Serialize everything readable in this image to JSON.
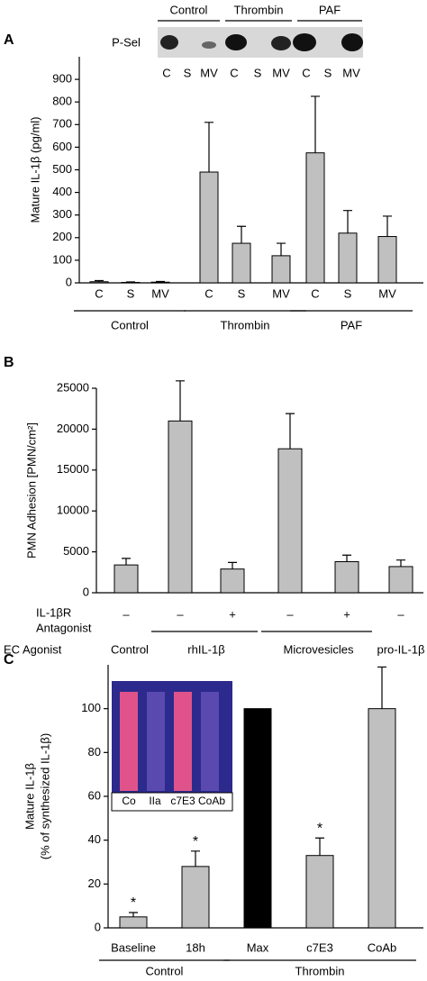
{
  "chart_data": [
    {
      "type": "bar",
      "panel": "A",
      "ylabel": "Mature IL-1β (pg/ml)",
      "blot": {
        "label": "P-Sel",
        "groups": [
          "Control",
          "Thrombin",
          "PAF"
        ],
        "lanes": [
          "C",
          "S",
          "MV",
          "C",
          "S",
          "MV",
          "C",
          "S",
          "MV"
        ]
      },
      "groups": [
        {
          "name": "Control",
          "categories": [
            "C",
            "S",
            "MV"
          ]
        },
        {
          "name": "Thrombin",
          "categories": [
            "C",
            "S",
            "MV"
          ]
        },
        {
          "name": "PAF",
          "categories": [
            "C",
            "S",
            "MV"
          ]
        }
      ],
      "values": [
        5,
        2,
        3,
        490,
        175,
        120,
        575,
        220,
        205
      ],
      "errors": [
        5,
        2,
        3,
        220,
        75,
        55,
        250,
        100,
        90
      ],
      "color": "#c0c0c0",
      "ylim": [
        0,
        1000
      ],
      "yticks": [
        0,
        100,
        200,
        300,
        400,
        500,
        600,
        700,
        800,
        900
      ]
    },
    {
      "type": "bar",
      "panel": "B",
      "ylabel": "PMN Adhesion [PMN/cm²]",
      "row_labels": [
        "IL-1βR",
        "Antagonist",
        "EC Agonist"
      ],
      "groups": [
        {
          "name": "Control",
          "antagonist": [
            "–"
          ]
        },
        {
          "name": "rhIL-1β",
          "antagonist": [
            "–",
            "+"
          ]
        },
        {
          "name": "Microvesicles",
          "antagonist": [
            "–",
            "+"
          ]
        },
        {
          "name": "pro-IL-1β",
          "antagonist": [
            "–"
          ]
        }
      ],
      "values": [
        3400,
        21000,
        2900,
        17600,
        3800,
        3200
      ],
      "errors": [
        800,
        4900,
        800,
        4300,
        800,
        800
      ],
      "color": "#c0c0c0",
      "ylim": [
        0,
        25000
      ],
      "yticks": [
        0,
        5000,
        10000,
        15000,
        20000,
        25000
      ]
    },
    {
      "type": "bar",
      "panel": "C",
      "ylabel": [
        "Mature IL-1β",
        "(% of synthesized IL-1β)"
      ],
      "inset_labels": [
        "Co",
        "IIa",
        "c7E3",
        "CoAb"
      ],
      "groups": [
        {
          "name": "Control",
          "categories": [
            "Baseline",
            "18h"
          ]
        },
        {
          "name": "Thrombin",
          "categories": [
            "Max",
            "c7E3",
            "CoAb"
          ]
        }
      ],
      "values": [
        5,
        28,
        100,
        33,
        100
      ],
      "errors": [
        2,
        7,
        null,
        8,
        19
      ],
      "markers": [
        "*",
        "*",
        null,
        "*",
        null
      ],
      "colors": [
        "#c0c0c0",
        "#c0c0c0",
        "#000000",
        "#c0c0c0",
        "#c0c0c0"
      ],
      "ylim": [
        0,
        120
      ],
      "yticks": [
        0,
        20,
        40,
        60,
        80,
        100
      ]
    }
  ]
}
